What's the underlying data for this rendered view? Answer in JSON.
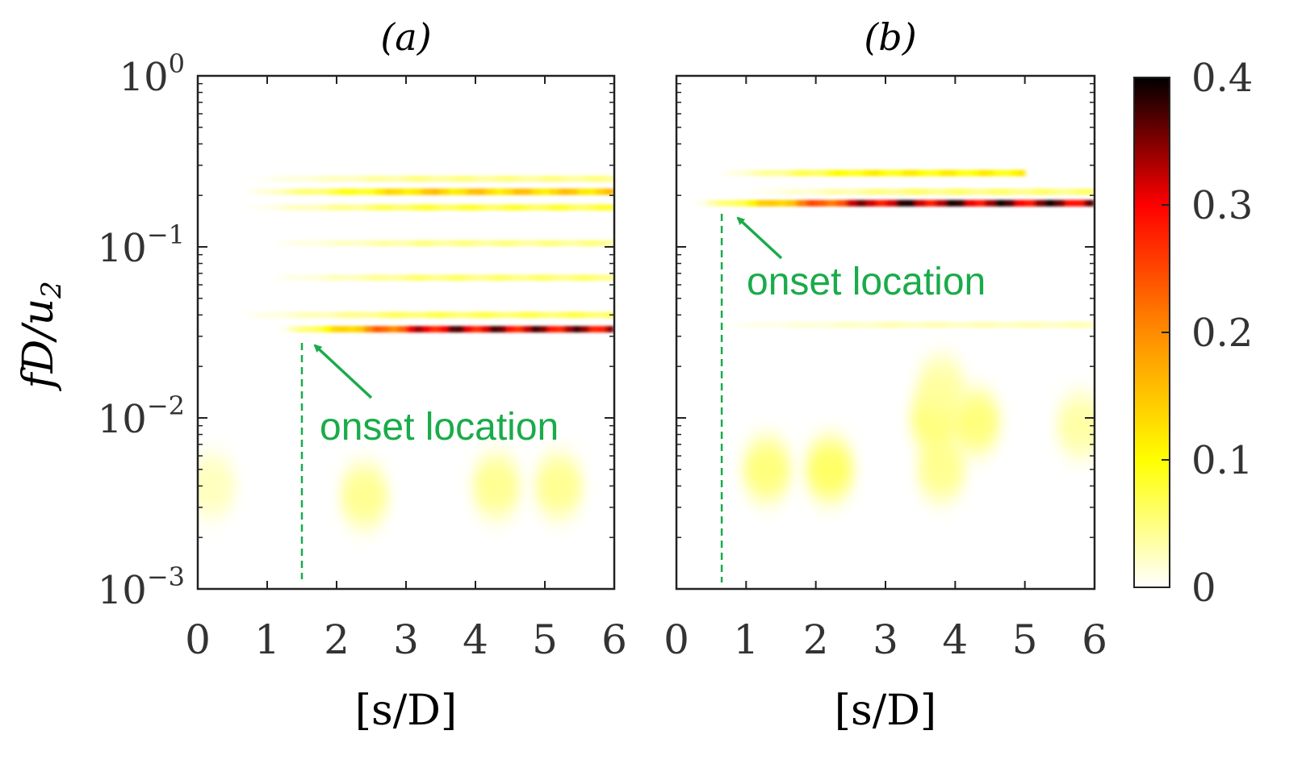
{
  "chart_data": [
    {
      "type": "heatmap",
      "panel_label": "(a)",
      "xlabel": "[s/D]",
      "ylabel": "fD/u",
      "ylabel_sub": "2",
      "x_ticks": [
        "0",
        "1",
        "2",
        "3",
        "4",
        "5",
        "6"
      ],
      "xlim": [
        0,
        6
      ],
      "y_scale": "log",
      "ylim": [
        0.001,
        1
      ],
      "y_ticks": [
        {
          "base": "10",
          "exp": "0",
          "value": 1
        },
        {
          "base": "10",
          "exp": "−1",
          "value": 0.1
        },
        {
          "base": "10",
          "exp": "−2",
          "value": 0.01
        },
        {
          "base": "10",
          "exp": "−3",
          "value": 0.001
        }
      ],
      "onset_location": {
        "s_over_D": 1.5,
        "label": "onset location"
      },
      "bands": [
        {
          "f": 0.033,
          "start": 1.2,
          "end": 6.0,
          "peak": 0.38
        },
        {
          "f": 0.21,
          "start": 0.7,
          "end": 6.0,
          "peak": 0.16
        },
        {
          "f": 0.17,
          "start": 0.7,
          "end": 6.0,
          "peak": 0.08
        },
        {
          "f": 0.25,
          "start": 0.7,
          "end": 6.0,
          "peak": 0.05
        },
        {
          "f": 0.105,
          "start": 1.0,
          "end": 6.0,
          "peak": 0.05
        },
        {
          "f": 0.066,
          "start": 1.0,
          "end": 6.0,
          "peak": 0.06
        },
        {
          "f": 0.04,
          "start": 0.6,
          "end": 6.0,
          "peak": 0.07
        }
      ],
      "blobs": [
        {
          "s": 2.4,
          "f": 0.0035,
          "peak": 0.05
        },
        {
          "s": 4.3,
          "f": 0.004,
          "peak": 0.05
        },
        {
          "s": 5.2,
          "f": 0.004,
          "peak": 0.05
        },
        {
          "s": 0.2,
          "f": 0.004,
          "peak": 0.03
        }
      ]
    },
    {
      "type": "heatmap",
      "panel_label": "(b)",
      "xlabel": "[s/D]",
      "x_ticks": [
        "0",
        "1",
        "2",
        "3",
        "4",
        "5",
        "6"
      ],
      "xlim": [
        0,
        6
      ],
      "y_scale": "log",
      "ylim": [
        0.001,
        1
      ],
      "onset_location": {
        "s_over_D": 0.65,
        "label": "onset location"
      },
      "bands": [
        {
          "f": 0.18,
          "start": 0.3,
          "end": 6.0,
          "peak": 0.4
        },
        {
          "f": 0.27,
          "start": 0.6,
          "end": 5.0,
          "peak": 0.12
        },
        {
          "f": 0.21,
          "start": 1.0,
          "end": 6.0,
          "peak": 0.06
        },
        {
          "f": 0.035,
          "start": 0.5,
          "end": 6.0,
          "peak": 0.03
        }
      ],
      "blobs": [
        {
          "s": 1.3,
          "f": 0.005,
          "peak": 0.06
        },
        {
          "s": 2.2,
          "f": 0.005,
          "peak": 0.07
        },
        {
          "s": 3.8,
          "f": 0.005,
          "peak": 0.05
        },
        {
          "s": 4.3,
          "f": 0.0095,
          "peak": 0.06
        },
        {
          "s": 3.7,
          "f": 0.0098,
          "peak": 0.06
        },
        {
          "s": 5.8,
          "f": 0.009,
          "peak": 0.04
        },
        {
          "s": 3.8,
          "f": 0.015,
          "peak": 0.04
        }
      ]
    }
  ],
  "colorbar": {
    "min": 0,
    "max": 0.4,
    "ticks": [
      "0",
      "0.1",
      "0.2",
      "0.3",
      "0.4"
    ],
    "colormap": [
      "#ffffff",
      "#ffff00",
      "#ff8c00",
      "#ff0000",
      "#000000"
    ]
  },
  "annotation_color": "#1aab4a"
}
